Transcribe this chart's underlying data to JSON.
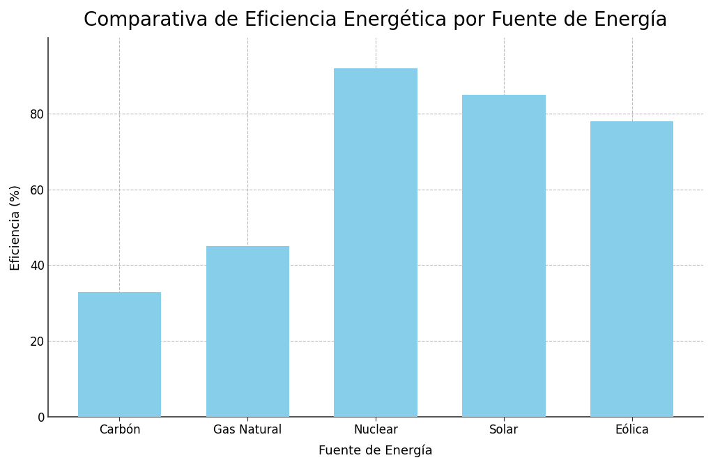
{
  "title": "Comparativa de Eficiencia Energética por Fuente de Energía",
  "xlabel": "Fuente de Energía",
  "ylabel": "Eficiencia (%)",
  "categories": [
    "Carbón",
    "Gas Natural",
    "Nuclear",
    "Solar",
    "Eólica"
  ],
  "values": [
    33,
    45,
    92,
    85,
    78
  ],
  "bar_color": "#87CEEB",
  "ylim": [
    0,
    100
  ],
  "yticks": [
    0,
    20,
    40,
    60,
    80
  ],
  "grid_color": "#aaaaaa",
  "grid_linestyle": "--",
  "grid_alpha": 0.8,
  "title_fontsize": 20,
  "label_fontsize": 13,
  "tick_fontsize": 12,
  "background_color": "#ffffff",
  "bar_width": 0.65
}
